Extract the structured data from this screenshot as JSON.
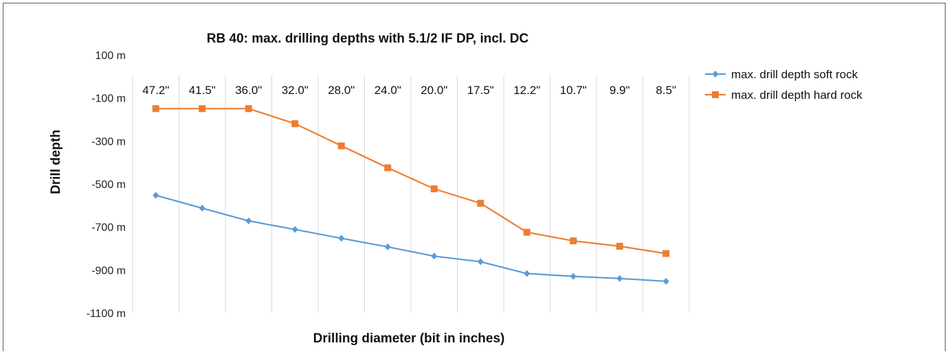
{
  "chart_data": {
    "type": "line",
    "title": "RB 40: max. drilling depths with 5.1/2 IF DP, incl. DC",
    "xlabel": "Drilling diameter (bit in inches)",
    "ylabel": "Drill depth",
    "categories": [
      "47.2\"",
      "41.5\"",
      "36.0\"",
      "32.0\"",
      "28.0\"",
      "24.0\"",
      "20.0\"",
      "17.5\"",
      "12.2\"",
      "10.7\"",
      "9.9\"",
      "8.5\""
    ],
    "ylim": [
      -1100,
      100
    ],
    "yticks": [
      100,
      -100,
      -300,
      -500,
      -700,
      -900,
      -1100
    ],
    "ytick_labels": [
      "100 m",
      "-100 m",
      "-300 m",
      "-500 m",
      "-700 m",
      "-900 m",
      "-1100 m"
    ],
    "grid": "vertical",
    "legend_position": "right",
    "series": [
      {
        "name": "max. drill depth soft rock",
        "color": "#5b9bd5",
        "marker": "diamond",
        "values": [
          -553,
          -613,
          -672,
          -712,
          -753,
          -793,
          -836,
          -862,
          -917,
          -930,
          -940,
          -953
        ]
      },
      {
        "name": "max. drill depth hard rock",
        "color": "#ed7d31",
        "marker": "square",
        "values": [
          -150,
          -150,
          -150,
          -220,
          -323,
          -425,
          -523,
          -590,
          -725,
          -765,
          -790,
          -824
        ]
      }
    ]
  }
}
